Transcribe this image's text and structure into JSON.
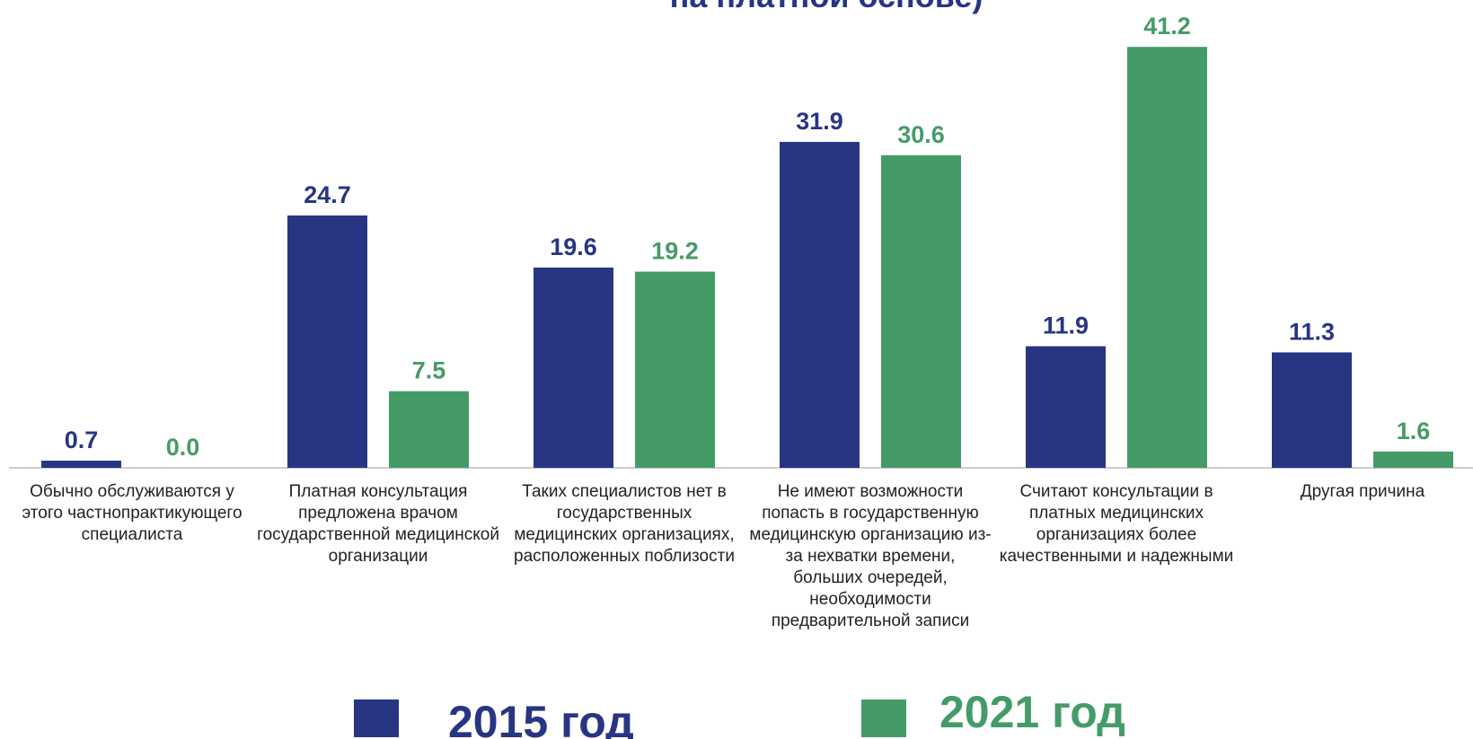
{
  "chart_data": {
    "type": "bar",
    "title": "на платной основе)",
    "categories": [
      "Обычно обслуживаются у этого частнопрактикующего специалиста",
      "Платная консультация предложена  врачом государственной медицинской организации",
      "Таких специалистов нет в государственных медицинских организациях, расположенных поблизости",
      "Не имеют возможности попасть в государственную медицинскую организацию из-за нехватки времени, больших очередей, необходимости предварительной записи",
      "Считают консультации  в платных медицинских организациях более качественными и надежными",
      "Другая причина"
    ],
    "series": [
      {
        "name": "2015 год",
        "color": "#283583",
        "values": [
          0.7,
          24.7,
          19.6,
          31.9,
          11.9,
          11.3
        ]
      },
      {
        "name": "2021 год",
        "color": "#459b67",
        "values": [
          0.0,
          7.5,
          19.2,
          30.6,
          41.2,
          1.6
        ],
        "value_labels": [
          "0.0",
          "7.5",
          "19.2",
          "30.6",
          "41.2",
          "1.6"
        ]
      }
    ],
    "ylim": [
      0,
      45
    ]
  }
}
